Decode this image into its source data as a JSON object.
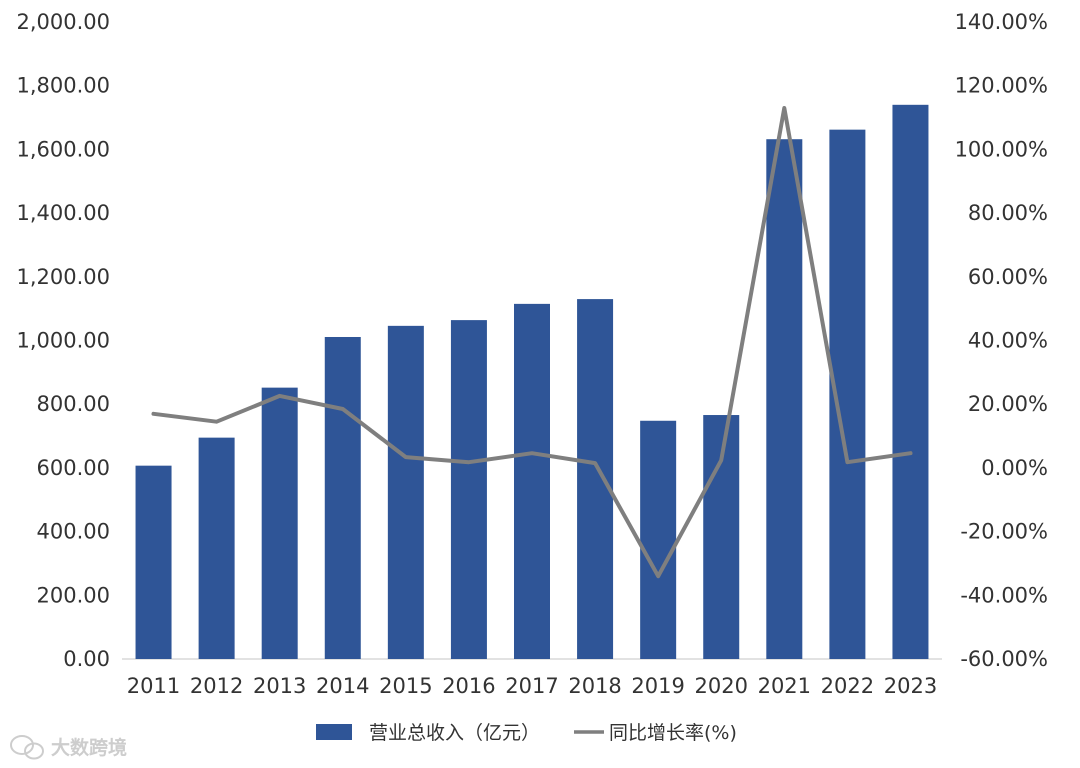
{
  "chart_data": {
    "type": "bar",
    "categories": [
      "2011",
      "2012",
      "2013",
      "2014",
      "2015",
      "2016",
      "2017",
      "2018",
      "2019",
      "2020",
      "2021",
      "2022",
      "2023"
    ],
    "series": [
      {
        "name": "营业总收入（亿元）",
        "type": "bar",
        "axis": "left",
        "color": "#2f5597",
        "values": [
          607,
          695,
          852,
          1011,
          1046,
          1064,
          1115,
          1130,
          748,
          766,
          1632,
          1662,
          1740
        ]
      },
      {
        "name": "同比增长率(%)",
        "type": "line",
        "axis": "right",
        "color": "#7f7f7f",
        "values": [
          17.0,
          14.5,
          22.6,
          18.5,
          3.4,
          1.8,
          4.6,
          1.5,
          -34.0,
          2.4,
          113.0,
          1.8,
          4.6
        ]
      }
    ],
    "y_left": {
      "ylim": [
        0,
        2000
      ],
      "ticks": [
        0,
        200,
        400,
        600,
        800,
        1000,
        1200,
        1400,
        1600,
        1800,
        2000
      ],
      "tick_labels": [
        "0.00",
        "200.00",
        "400.00",
        "600.00",
        "800.00",
        "1,000.00",
        "1,200.00",
        "1,400.00",
        "1,600.00",
        "1,800.00",
        "2,000.00"
      ]
    },
    "y_right": {
      "ylim": [
        -60,
        140
      ],
      "ticks": [
        -60,
        -40,
        -20,
        0,
        20,
        40,
        60,
        80,
        100,
        120,
        140
      ],
      "tick_labels": [
        "-60.00%",
        "-40.00%",
        "-20.00%",
        "0.00%",
        "20.00%",
        "40.00%",
        "60.00%",
        "80.00%",
        "100.00%",
        "120.00%",
        "140.00%"
      ]
    },
    "grid": false,
    "legend": {
      "position": "bottom-center",
      "entries": [
        "营业总收入（亿元）",
        "同比增长率(%)"
      ]
    },
    "title": "",
    "xlabel": "",
    "ylabel": ""
  },
  "watermark": {
    "text": "大数跨境",
    "icon": "wechat-logo-icon"
  }
}
